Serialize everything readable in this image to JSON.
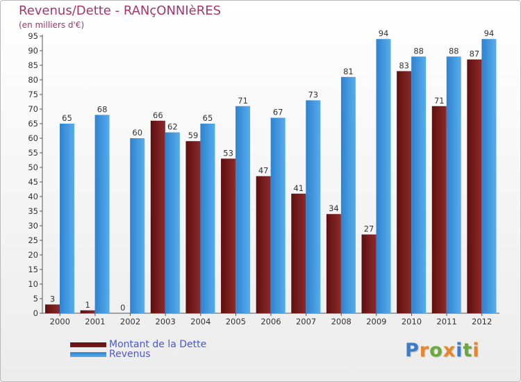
{
  "chart_data": {
    "type": "bar",
    "title": "Revenus/Dette - RANçONNIèRES",
    "subtitle": "(en milliers d'€)",
    "categories": [
      "2000",
      "2001",
      "2002",
      "2003",
      "2004",
      "2005",
      "2006",
      "2007",
      "2008",
      "2009",
      "2010",
      "2011",
      "2012"
    ],
    "series": [
      {
        "name": "Montant de la Dette",
        "values": [
          3,
          1,
          0,
          66,
          59,
          53,
          47,
          41,
          34,
          27,
          83,
          71,
          87
        ],
        "color": "#7a1c1c"
      },
      {
        "name": "Revenus",
        "values": [
          65,
          68,
          60,
          62,
          65,
          71,
          67,
          73,
          81,
          94,
          88,
          88,
          94
        ],
        "color": "#3d96de"
      }
    ],
    "ylim": [
      0,
      95
    ],
    "ytick_step": 5,
    "grid": false,
    "legend_position": "bottom-left"
  },
  "logo": {
    "text": "Proxiti",
    "letter_colors": [
      "#3a7cc8",
      "#e8862c",
      "#6aaa3a",
      "#e8862c",
      "#3a7cc8",
      "#6aaa3a",
      "#e8862c"
    ]
  }
}
